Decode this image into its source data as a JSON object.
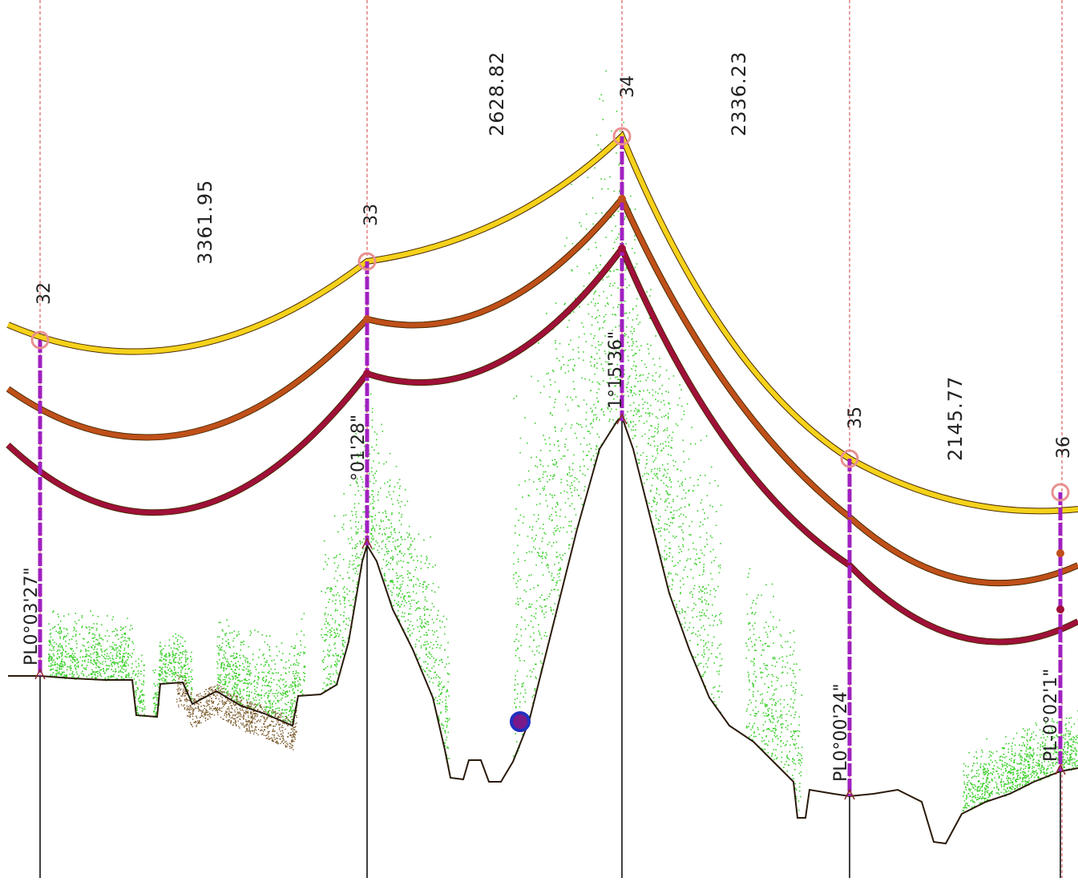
{
  "diagram": {
    "towers": [
      {
        "id": "32",
        "angle": "PL0°03'27\""
      },
      {
        "id": "33",
        "angle": "°01'28\""
      },
      {
        "id": "34",
        "angle": "1°15'36\""
      },
      {
        "id": "35",
        "angle": "PL0°00'24\""
      },
      {
        "id": "36",
        "angle": "PL-0°02'1\""
      }
    ],
    "spans": [
      {
        "from": "32",
        "to": "33",
        "length": "3361.95"
      },
      {
        "from": "33",
        "to": "34",
        "length": "2628.82"
      },
      {
        "from": "34",
        "to": "35",
        "length": "2336.23"
      },
      {
        "from": "35",
        "to": "36",
        "length": "2145.77"
      }
    ],
    "colors": {
      "conductor_top": "#f5d21b",
      "conductor_mid": "#c0501a",
      "conductor_low": "#a0103a",
      "tower_line": "#a020c0",
      "vegetation": "#3ccf2c",
      "ground": "#2a1a0a",
      "gridline": "#d04040"
    }
  }
}
